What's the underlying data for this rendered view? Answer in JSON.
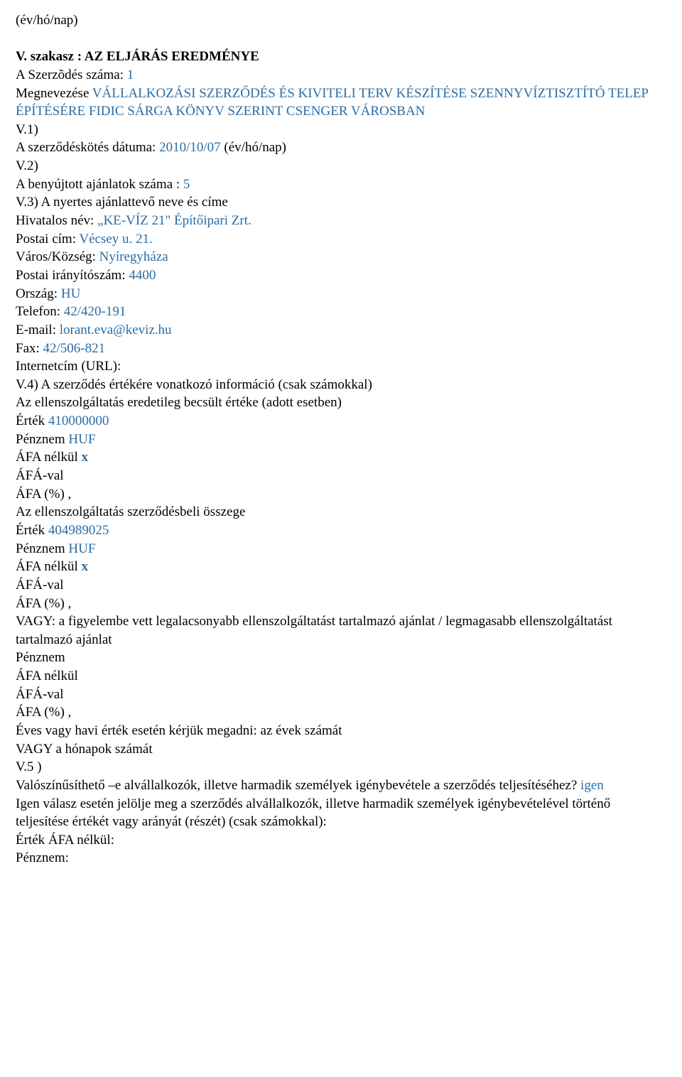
{
  "l01": "(év/hó/nap)",
  "l02a": "V. szakasz : AZ ELJÁRÁS EREDMÉNYE",
  "l03a": "A Szerzõdés száma: ",
  "l03b": "1",
  "l04a": "Megnevezése ",
  "l04b": "VÁLLALKOZÁSI SZERZŐDÉS ÉS KIVITELI TERV KÉSZÍTÉSE SZENNYVÍZTISZTÍTÓ TELEP ÉPÍTÉSÉRE FIDIC SÁRGA KÖNYV SZERINT CSENGER VÁROSBAN",
  "l05": "V.1)",
  "l06a": "A szerződéskötés dátuma: ",
  "l06b": "2010/10/07 ",
  "l06c": "(év/hó/nap)",
  "l07": "V.2)",
  "l08a": "A benyújtott ajánlatok száma : ",
  "l08b": "5",
  "l09": "V.3) A nyertes ajánlattevő neve és címe",
  "l10a": "Hivatalos név: ",
  "l10b": "„KE-VÍZ 21\" Építőipari Zrt.",
  "l11a": "Postai cím: ",
  "l11b": "Vécsey u. 21.",
  "l12a": "Város/Község: ",
  "l12b": "Nyíregyháza",
  "l13a": "Postai irányítószám: ",
  "l13b": "4400",
  "l14a": "Ország: ",
  "l14b": "HU",
  "l15a": "Telefon: ",
  "l15b": "42/420-191",
  "l16a": "E-mail: ",
  "l16b": "lorant.eva@keviz.hu",
  "l17a": "Fax: ",
  "l17b": "42/506-821",
  "l18": "Internetcím (URL):",
  "l19": "V.4) A szerződés értékére vonatkozó információ (csak számokkal)",
  "l20": "Az ellenszolgáltatás eredetileg becsült értéke (adott esetben)",
  "l21a": "Érték ",
  "l21b": "410000000",
  "l22a": "Pénznem ",
  "l22b": "HUF",
  "l23a": "ÁFA nélkül ",
  "l23b": "x",
  "l24": "ÁFÁ-val",
  "l25": "ÁFA (%) ,",
  "l26": "Az ellenszolgáltatás szerződésbeli összege",
  "l27a": "Érték ",
  "l27b": "404989025",
  "l28a": "Pénznem ",
  "l28b": "HUF",
  "l29a": "ÁFA nélkül ",
  "l29b": "x",
  "l30": "ÁFÁ-val",
  "l31": "ÁFA (%) ,",
  "l32": "VAGY: a figyelembe vett legalacsonyabb ellenszolgáltatást tartalmazó ajánlat / legmagasabb ellenszolgáltatást tartalmazó ajánlat",
  "l33": "Pénznem",
  "l34": "ÁFA nélkül",
  "l35": "ÁFÁ-val",
  "l36": "ÁFA (%) ,",
  "l37": "Éves vagy havi érték esetén kérjük megadni: az évek számát",
  "l38": "VAGY a hónapok számát",
  "l39": "V.5 )",
  "l40a": "Valószínűsíthető –e alvállalkozók, illetve harmadik személyek igénybevétele a szerződés teljesítéséhez? ",
  "l40b": "igen",
  "l41": "Igen válasz esetén jelölje meg a szerződés alvállalkozók, illetve harmadik személyek igénybevételével történő teljesítése értékét vagy arányát (részét) (csak számokkal):",
  "l42": "Érték ÁFA nélkül:",
  "l43": "Pénznem:"
}
